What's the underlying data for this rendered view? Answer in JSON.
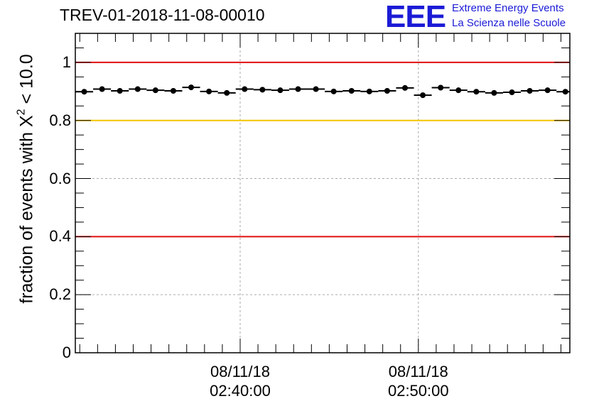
{
  "chart_data": {
    "type": "scatter",
    "title": "TREV-01-2018-11-08-00010",
    "logo": {
      "mark": "EEE",
      "line1": "Extreme Energy Events",
      "line2": "La Scienza nelle Scuole",
      "color": "#1b1bd6"
    },
    "ylabel": {
      "prefix": "fraction of events with ",
      "symbol": "X",
      "superscript": "2",
      "suffix": " < 10.0"
    },
    "ylim": [
      0,
      1.1
    ],
    "yticks": [
      {
        "value": 0,
        "label": "0"
      },
      {
        "value": 0.2,
        "label": "0.2"
      },
      {
        "value": 0.4,
        "label": "0.4"
      },
      {
        "value": 0.6,
        "label": "0.6"
      },
      {
        "value": 0.8,
        "label": "0.8"
      },
      {
        "value": 1,
        "label": "1"
      }
    ],
    "xlim_minutes": [
      30.75,
      58.5
    ],
    "xticks": [
      {
        "minute": 40,
        "date": "08/11/18",
        "time": "02:40:00"
      },
      {
        "minute": 50,
        "date": "08/11/18",
        "time": "02:50:00"
      }
    ],
    "reference_lines": [
      {
        "value": 1.0,
        "color": "#e01010"
      },
      {
        "value": 0.8,
        "color": "#f5c400"
      },
      {
        "value": 0.4,
        "color": "#e01010"
      }
    ],
    "bin_width_minutes": 1,
    "series": [
      {
        "name": "fraction",
        "color": "#000000",
        "x_minutes": [
          31.25,
          32.25,
          33.25,
          34.25,
          35.25,
          36.25,
          37.25,
          38.25,
          39.25,
          40.25,
          41.25,
          42.25,
          43.25,
          44.25,
          45.25,
          46.25,
          47.25,
          48.25,
          49.25,
          50.25,
          51.25,
          52.25,
          53.25,
          54.25,
          55.25,
          56.25,
          57.25,
          58.25
        ],
        "values": [
          0.899,
          0.908,
          0.902,
          0.908,
          0.904,
          0.902,
          0.914,
          0.9,
          0.895,
          0.908,
          0.906,
          0.904,
          0.908,
          0.908,
          0.9,
          0.902,
          0.9,
          0.902,
          0.912,
          0.887,
          0.913,
          0.904,
          0.899,
          0.895,
          0.897,
          0.902,
          0.904,
          0.899
        ]
      }
    ]
  }
}
